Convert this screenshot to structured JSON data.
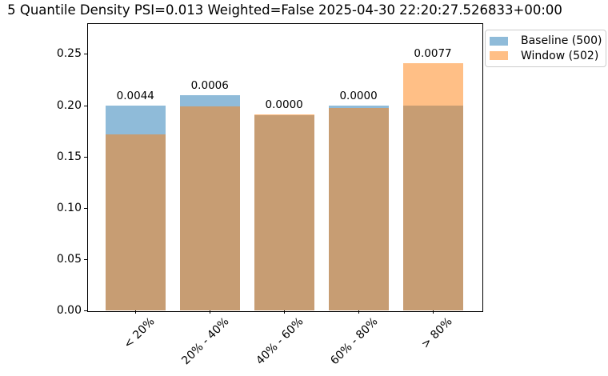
{
  "figure": {
    "title": "5 Quantile Density PSI=0.013 Weighted=False 2025-04-30 22:20:27.526833+00:00"
  },
  "legend": {
    "entries": [
      {
        "label": "Baseline (500)",
        "color": "#8FBBD9"
      },
      {
        "label": "Window (502)",
        "color": "#FFBF86"
      }
    ]
  },
  "chart_data": {
    "type": "bar",
    "title": "5 Quantile Density PSI=0.013 Weighted=False 2025-04-30 22:20:27.526833+00:00",
    "categories": [
      "< 20%",
      "20% - 40%",
      "40% - 60%",
      "60% - 80%",
      "> 80%"
    ],
    "series": [
      {
        "name": "Baseline (500)",
        "color": "#8FBBD9",
        "values": [
          0.2,
          0.21,
          0.19,
          0.2,
          0.2
        ]
      },
      {
        "name": "Window (502)",
        "color": "#FFBF86",
        "values": [
          0.1713,
          0.1992,
          0.1912,
          0.1972,
          0.241
        ]
      }
    ],
    "overlap_color": "#C79D73",
    "bar_labels": [
      "0.0044",
      "0.0006",
      "0.0000",
      "0.0000",
      "0.0077"
    ],
    "yticks": [
      0.0,
      0.05,
      0.1,
      0.15,
      0.2,
      0.25
    ],
    "ytick_labels": [
      "0.00",
      "0.05",
      "0.10",
      "0.15",
      "0.20",
      "0.25"
    ],
    "ylim": [
      0,
      0.28
    ],
    "xlabel": "",
    "ylabel": "",
    "grid": false,
    "bar_style": "overlapping semi-transparent (alpha 0.5), not stacked",
    "xtick_rotation": 45,
    "legend_position": "upper right, outside axes"
  }
}
